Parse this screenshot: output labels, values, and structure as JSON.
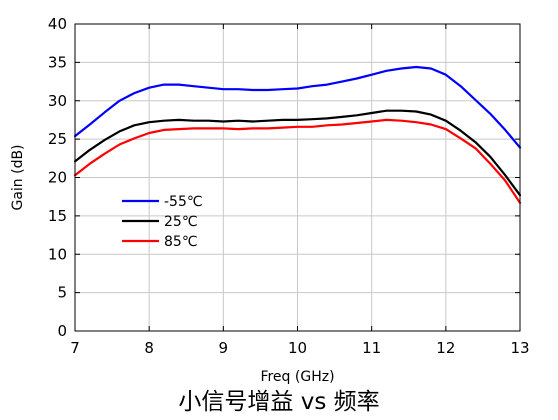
{
  "caption": "小信号增益  vs 频率",
  "chart_data": {
    "type": "line",
    "title": "",
    "xlabel": "Freq (GHz)",
    "ylabel": "Gain (dB)",
    "xlim": [
      7,
      13
    ],
    "ylim": [
      0,
      40
    ],
    "xticks": [
      7,
      8,
      9,
      10,
      11,
      12,
      13
    ],
    "yticks": [
      0,
      5,
      10,
      15,
      20,
      25,
      30,
      35,
      40
    ],
    "grid": true,
    "legend_position": "lower-left",
    "series": [
      {
        "name": "-55℃",
        "color": "#0000ff",
        "x": [
          7.0,
          7.2,
          7.4,
          7.6,
          7.8,
          8.0,
          8.2,
          8.4,
          8.6,
          8.8,
          9.0,
          9.2,
          9.4,
          9.6,
          9.8,
          10.0,
          10.2,
          10.4,
          10.6,
          10.8,
          11.0,
          11.2,
          11.4,
          11.6,
          11.8,
          12.0,
          12.2,
          12.4,
          12.6,
          12.8,
          13.0
        ],
        "y": [
          25.4,
          26.9,
          28.5,
          30.0,
          31.0,
          31.7,
          32.1,
          32.1,
          31.9,
          31.7,
          31.5,
          31.5,
          31.4,
          31.4,
          31.5,
          31.6,
          31.9,
          32.1,
          32.5,
          32.9,
          33.4,
          33.9,
          34.2,
          34.4,
          34.2,
          33.4,
          31.9,
          30.1,
          28.3,
          26.2,
          23.9
        ]
      },
      {
        "name": "25℃",
        "color": "#000000",
        "x": [
          7.0,
          7.2,
          7.4,
          7.6,
          7.8,
          8.0,
          8.2,
          8.4,
          8.6,
          8.8,
          9.0,
          9.2,
          9.4,
          9.6,
          9.8,
          10.0,
          10.2,
          10.4,
          10.6,
          10.8,
          11.0,
          11.2,
          11.4,
          11.6,
          11.8,
          12.0,
          12.2,
          12.4,
          12.6,
          12.8,
          13.0
        ],
        "y": [
          22.1,
          23.6,
          24.9,
          26.0,
          26.8,
          27.2,
          27.4,
          27.5,
          27.4,
          27.4,
          27.3,
          27.4,
          27.3,
          27.4,
          27.5,
          27.5,
          27.6,
          27.7,
          27.9,
          28.1,
          28.4,
          28.7,
          28.7,
          28.6,
          28.2,
          27.4,
          26.1,
          24.6,
          22.7,
          20.3,
          17.7
        ]
      },
      {
        "name": "85℃",
        "color": "#ff0000",
        "x": [
          7.0,
          7.2,
          7.4,
          7.6,
          7.8,
          8.0,
          8.2,
          8.4,
          8.6,
          8.8,
          9.0,
          9.2,
          9.4,
          9.6,
          9.8,
          10.0,
          10.2,
          10.4,
          10.6,
          10.8,
          11.0,
          11.2,
          11.4,
          11.6,
          11.8,
          12.0,
          12.2,
          12.4,
          12.6,
          12.8,
          13.0
        ],
        "y": [
          20.3,
          21.8,
          23.1,
          24.3,
          25.1,
          25.8,
          26.2,
          26.3,
          26.4,
          26.4,
          26.4,
          26.3,
          26.4,
          26.4,
          26.5,
          26.6,
          26.6,
          26.8,
          26.9,
          27.1,
          27.3,
          27.5,
          27.4,
          27.2,
          26.9,
          26.3,
          25.1,
          23.8,
          21.8,
          19.6,
          16.7
        ]
      }
    ]
  }
}
